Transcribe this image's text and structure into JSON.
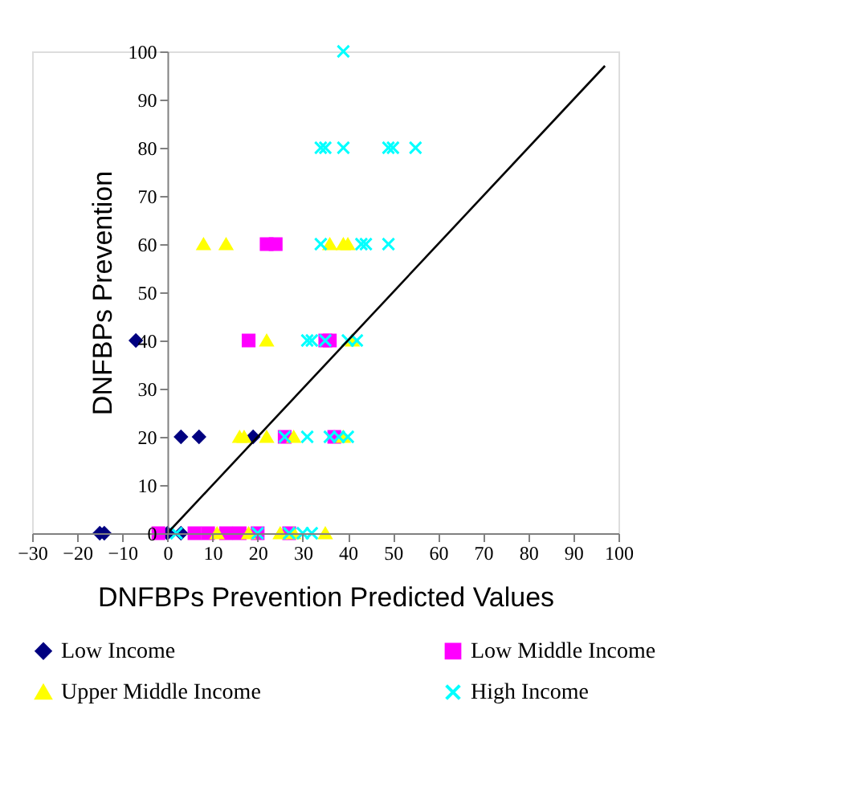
{
  "chart_data": {
    "type": "scatter",
    "xlabel": "DNFBPs Prevention Predicted Values",
    "ylabel": "DNFBPs Prevention",
    "xlim": [
      -30,
      100
    ],
    "xticks": [
      -30,
      -20,
      -10,
      0,
      10,
      20,
      30,
      40,
      50,
      60,
      70,
      80,
      90,
      100
    ],
    "ylim": [
      0,
      100
    ],
    "yticks": [
      0,
      10,
      20,
      30,
      40,
      50,
      60,
      70,
      80,
      90,
      100
    ],
    "grid": false,
    "legend": "bottom",
    "series": [
      {
        "name": "Low Income",
        "color": "#000080",
        "marker": "diamond",
        "x": [
          -15,
          -14,
          0,
          3,
          3,
          7,
          19,
          -7
        ],
        "values": [
          0,
          0,
          0,
          0,
          20,
          20,
          20,
          40
        ]
      },
      {
        "name": "Low Middle Income",
        "color": "#ff00ff",
        "marker": "square",
        "x": [
          -2,
          6,
          9,
          13,
          16,
          20,
          27,
          26,
          37,
          18,
          35,
          36,
          22,
          24
        ],
        "values": [
          0,
          0,
          0,
          0,
          0,
          0,
          0,
          20,
          20,
          40,
          40,
          40,
          60,
          60
        ]
      },
      {
        "name": "Upper Middle Income",
        "color": "#ffff00",
        "marker": "triangle",
        "x": [
          11,
          18,
          25,
          28,
          35,
          16,
          17,
          22,
          28,
          39,
          22,
          41,
          8,
          13,
          36,
          39,
          40
        ],
        "values": [
          0,
          0,
          0,
          0,
          0,
          20,
          20,
          20,
          20,
          20,
          40,
          40,
          60,
          60,
          60,
          60,
          60
        ]
      },
      {
        "name": "High Income",
        "color": "#00ffff",
        "marker": "cross",
        "x": [
          2,
          20,
          27,
          30,
          32,
          26,
          31,
          36,
          38,
          40,
          31,
          32,
          35,
          40,
          42,
          34,
          43,
          44,
          49,
          34,
          35,
          39,
          49,
          50,
          55,
          39
        ],
        "values": [
          0,
          0,
          0,
          0,
          0,
          20,
          20,
          20,
          20,
          20,
          40,
          40,
          40,
          40,
          40,
          60,
          60,
          60,
          60,
          80,
          80,
          80,
          80,
          80,
          80,
          100
        ]
      },
      {
        "type": "line",
        "color": "#000000",
        "marker": "none",
        "x": [
          0,
          97
        ],
        "values": [
          0,
          97
        ]
      }
    ]
  }
}
